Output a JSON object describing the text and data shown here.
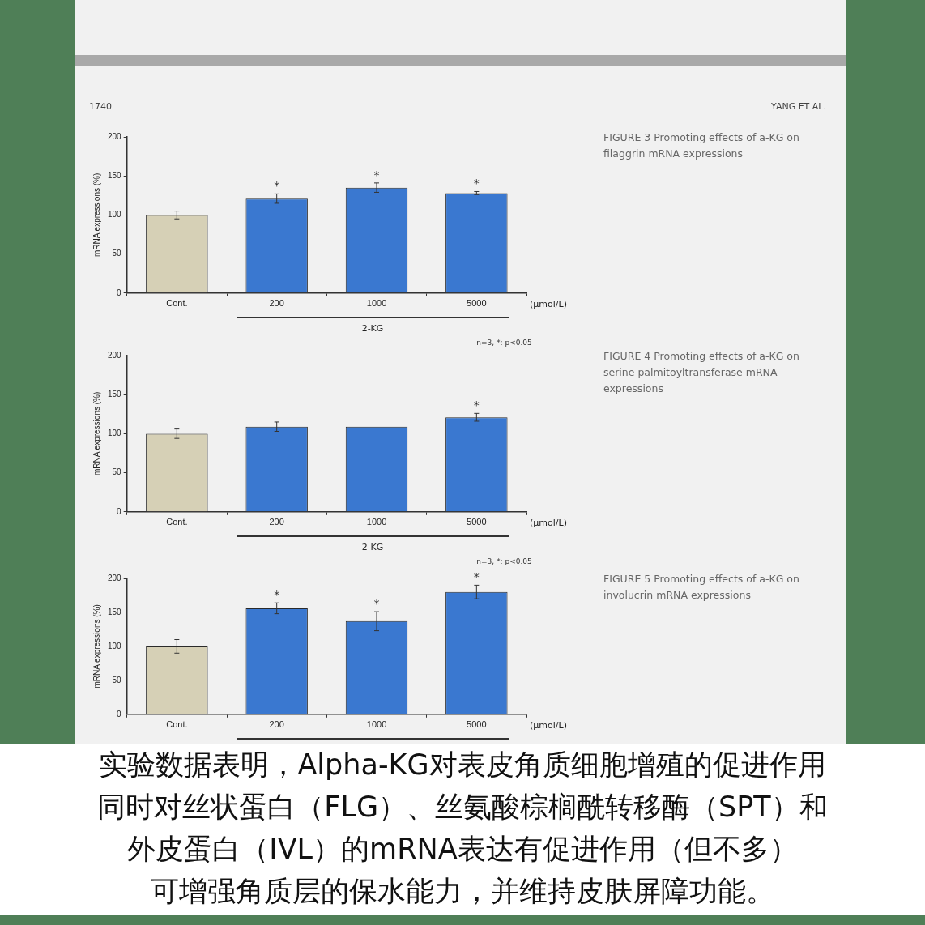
{
  "chart_data": [
    {
      "type": "other",
      "annotations": [
        "1740",
        "YANG ET AL."
      ]
    },
    {
      "type": "bar",
      "ylabel": "mRNA expressions (%)",
      "xlabel": "2-KG",
      "categories": [
        "Cont.",
        "200",
        "1000",
        "5000"
      ],
      "values": [
        100,
        121,
        135,
        128
      ],
      "errors": [
        5,
        6,
        6,
        2
      ],
      "colors": [
        "#d6d0b6",
        "#3a78d0",
        "#3a78d0",
        "#3a78d0"
      ],
      "ylim": [
        0,
        200
      ],
      "yticks": [
        0,
        50,
        100,
        150,
        200
      ],
      "grid": false,
      "legend": false,
      "annotations": [
        "FIGURE 3  Promoting effects of a-KG on filaggrin mRNA expressions",
        "(μmol/L)",
        "n=3, *: p<0.05",
        {
          "text": "*",
          "x": "200",
          "y": 127
        },
        {
          "text": "*",
          "x": "1000",
          "y": 141
        },
        {
          "text": "*",
          "x": "5000",
          "y": 130
        }
      ]
    },
    {
      "type": "bar",
      "ylabel": "mRNA expressions (%)",
      "xlabel": "2-KG",
      "categories": [
        "Cont.",
        "200",
        "1000",
        "5000"
      ],
      "values": [
        100,
        109,
        109,
        121
      ],
      "errors": [
        6,
        6,
        null,
        5
      ],
      "colors": [
        "#d6d0b6",
        "#3a78d0",
        "#3a78d0",
        "#3a78d0"
      ],
      "ylim": [
        0,
        200
      ],
      "yticks": [
        0,
        50,
        100,
        150,
        200
      ],
      "grid": false,
      "legend": false,
      "annotations": [
        "FIGURE 4  Promoting effects of a-KG on serine palmitoyltransferase mRNA expressions",
        "(μmol/L)",
        "n=3, *: p<0.05",
        {
          "text": "*",
          "x": "5000",
          "y": 126
        }
      ]
    },
    {
      "type": "bar",
      "ylabel": "mRNA expressions (%)",
      "categories": [
        "Cont.",
        "200",
        "1000",
        "5000"
      ],
      "values": [
        100,
        156,
        137,
        180
      ],
      "errors": [
        10,
        8,
        14,
        10
      ],
      "colors": [
        "#d6d0b6",
        "#3a78d0",
        "#3a78d0",
        "#3a78d0"
      ],
      "ylim": [
        0,
        200
      ],
      "yticks": [
        0,
        50,
        100,
        150,
        200
      ],
      "grid": false,
      "legend": false,
      "annotations": [
        "FIGURE 5  Promoting effects of a-KG on involucrin mRNA expressions",
        "(μmol/L)",
        {
          "text": "*",
          "x": "200",
          "y": 164
        },
        {
          "text": "*",
          "x": "1000",
          "y": 151
        },
        {
          "text": "*",
          "x": "5000",
          "y": 190
        }
      ]
    },
    {
      "type": "other",
      "annotations": [
        "实验数据表明，Alpha-KG对表皮角质细胞增殖的促进作用",
        "同时对丝状蛋白（FLG）、丝氨酸棕榈酰转移酶（SPT）和",
        "外皮蛋白（IVL）的mRNA表达有促进作用（但不多）",
        "可增强角质层的保水能力，并维持皮肤屏障功能。"
      ]
    }
  ]
}
